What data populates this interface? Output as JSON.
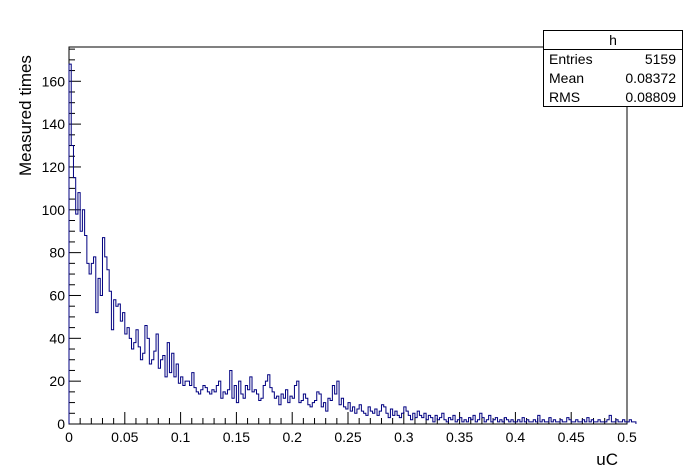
{
  "chart_data": {
    "type": "bar",
    "histogram": true,
    "title": "",
    "xlabel": "uC",
    "ylabel": "Measured times",
    "xlim": [
      0,
      0.5
    ],
    "ylim": [
      0,
      176
    ],
    "xticks": [
      "0",
      "0.05",
      "0.1",
      "0.15",
      "0.2",
      "0.25",
      "0.3",
      "0.35",
      "0.4",
      "0.45",
      "0.5"
    ],
    "yticks": [
      "0",
      "20",
      "40",
      "60",
      "80",
      "100",
      "120",
      "140",
      "160"
    ],
    "bin_width": 0.002,
    "series": [
      {
        "values": [
          168,
          130,
          115,
          98,
          108,
          90,
          100,
          88,
          75,
          70,
          75,
          78,
          52,
          68,
          60,
          87,
          78,
          72,
          62,
          44,
          58,
          55,
          56,
          48,
          52,
          42,
          45,
          40,
          35,
          38,
          44,
          36,
          30,
          33,
          46,
          40,
          28,
          30,
          34,
          42,
          26,
          30,
          32,
          22,
          38,
          24,
          33,
          22,
          28,
          19,
          22,
          18,
          20,
          20,
          18,
          24,
          17,
          15,
          14,
          16,
          18,
          17,
          15,
          14,
          16,
          15,
          18,
          20,
          12,
          15,
          14,
          16,
          25,
          12,
          18,
          10,
          20,
          14,
          12,
          18,
          16,
          22,
          15,
          16,
          14,
          11,
          12,
          18,
          20,
          23,
          17,
          15,
          12,
          13,
          9,
          14,
          12,
          16,
          10,
          13,
          12,
          18,
          20,
          10,
          11,
          14,
          12,
          9,
          8,
          10,
          11,
          15,
          14,
          8,
          10,
          6,
          12,
          11,
          18,
          14,
          20,
          9,
          12,
          8,
          7,
          10,
          6,
          8,
          5,
          7,
          9,
          6,
          5,
          4,
          8,
          6,
          5,
          7,
          4,
          6,
          9,
          8,
          5,
          3,
          7,
          4,
          6,
          4,
          3,
          5,
          8,
          6,
          4,
          2,
          5,
          3,
          6,
          4,
          3,
          5,
          2,
          4,
          3,
          1,
          4,
          2,
          3,
          5,
          2,
          1,
          3,
          2,
          4,
          1,
          2,
          3,
          1,
          2,
          1,
          3,
          2,
          4,
          1,
          2,
          5,
          3,
          1,
          2,
          4,
          1,
          2,
          3,
          1,
          2,
          1,
          3,
          2,
          1,
          2,
          1,
          1,
          2,
          1,
          3,
          1,
          2,
          1,
          1,
          2,
          1,
          4,
          1,
          2,
          1,
          1,
          3,
          1,
          2,
          1,
          1,
          2,
          1,
          1,
          3,
          2,
          1,
          1,
          2,
          1,
          1,
          2,
          1,
          3,
          1,
          2,
          1,
          1,
          2,
          1,
          1,
          1,
          2,
          4,
          1,
          1,
          2,
          1,
          1,
          2,
          1,
          1,
          2,
          1,
          1
        ]
      }
    ],
    "legend_position": "top-right",
    "stats_box": {
      "name": "h",
      "entries_label": "Entries",
      "entries": "5159",
      "mean_label": "Mean",
      "mean": "0.08372",
      "rms_label": "RMS",
      "rms": "0.08809"
    },
    "colors": {
      "line": "#000080",
      "axis": "#000000"
    }
  }
}
